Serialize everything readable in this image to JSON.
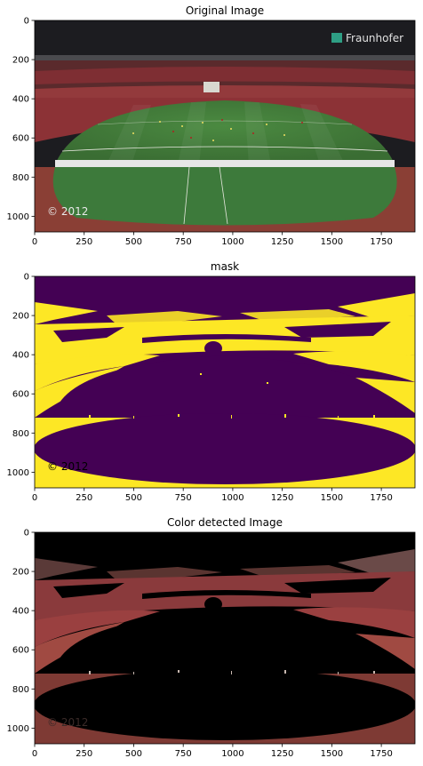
{
  "chart_data": [
    {
      "type": "image",
      "title": "Original Image",
      "xticks": [
        0,
        250,
        500,
        750,
        1000,
        1250,
        1500,
        1750
      ],
      "yticks": [
        0,
        200,
        400,
        600,
        800,
        1000
      ],
      "xlim": [
        0,
        1920
      ],
      "ylim": [
        1080,
        0
      ],
      "watermark": "© 2012",
      "logo": "Fraunhofer",
      "colors": {
        "sky": "#1c1c20",
        "stands": "#7a2a30",
        "pitch": "#3f7d3a",
        "track": "#8a3f35"
      }
    },
    {
      "type": "image",
      "title": "mask",
      "xticks": [
        0,
        250,
        500,
        750,
        1000,
        1250,
        1500,
        1750
      ],
      "yticks": [
        0,
        200,
        400,
        600,
        800,
        1000
      ],
      "xlim": [
        0,
        1920
      ],
      "ylim": [
        1080,
        0
      ],
      "watermark": "© 2012",
      "colors": {
        "background": "#440154",
        "foreground": "#fde725"
      }
    },
    {
      "type": "image",
      "title": "Color detected Image",
      "xticks": [
        0,
        250,
        500,
        750,
        1000,
        1250,
        1500,
        1750
      ],
      "yticks": [
        0,
        200,
        400,
        600,
        800,
        1000
      ],
      "xlim": [
        0,
        1920
      ],
      "ylim": [
        1080,
        0
      ],
      "watermark": "© 2012",
      "colors": {
        "background": "#000000",
        "detected": "#8a3a38"
      }
    }
  ]
}
